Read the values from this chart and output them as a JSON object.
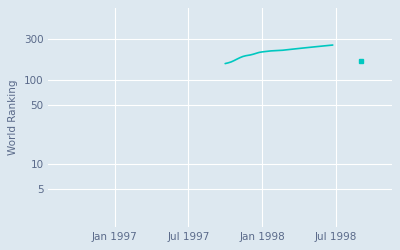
{
  "ylabel": "World Ranking",
  "background_color": "#dde8f0",
  "line_color": "#00c8c0",
  "line_width": 1.2,
  "xtick_labels": [
    "Jan 1997",
    "Jul 1997",
    "Jan 1998",
    "Jul 1998"
  ],
  "xtick_positions": [
    1997.0,
    1997.5,
    1998.0,
    1998.5
  ],
  "ytick_positions": [
    5,
    10,
    50,
    100,
    300
  ],
  "ytick_labels": [
    "5",
    "10",
    "50",
    "100",
    "300"
  ],
  "ylim": [
    1.8,
    700
  ],
  "xlim": [
    1996.55,
    1998.88
  ],
  "grid_color": "#ffffff",
  "text_color": "#5a6a8a",
  "data_x": [
    1997.75,
    1997.77,
    1997.79,
    1997.81,
    1997.83,
    1997.85,
    1997.87,
    1997.89,
    1997.92,
    1997.94,
    1997.96,
    1997.98,
    1998.0,
    1998.02,
    1998.04,
    1998.06,
    1998.08,
    1998.1,
    1998.12,
    1998.14,
    1998.16,
    1998.18,
    1998.2,
    1998.22,
    1998.24,
    1998.26,
    1998.28,
    1998.3,
    1998.32,
    1998.34,
    1998.36,
    1998.38,
    1998.4,
    1998.42,
    1998.44,
    1998.46,
    1998.48
  ],
  "data_y": [
    155,
    158,
    162,
    168,
    175,
    182,
    188,
    192,
    196,
    200,
    205,
    210,
    213,
    215,
    217,
    219,
    220,
    221,
    222,
    223,
    225,
    227,
    229,
    231,
    233,
    235,
    237,
    239,
    241,
    243,
    245,
    247,
    249,
    251,
    253,
    255,
    257
  ],
  "dot_x": [
    1998.67
  ],
  "dot_y": [
    168
  ]
}
